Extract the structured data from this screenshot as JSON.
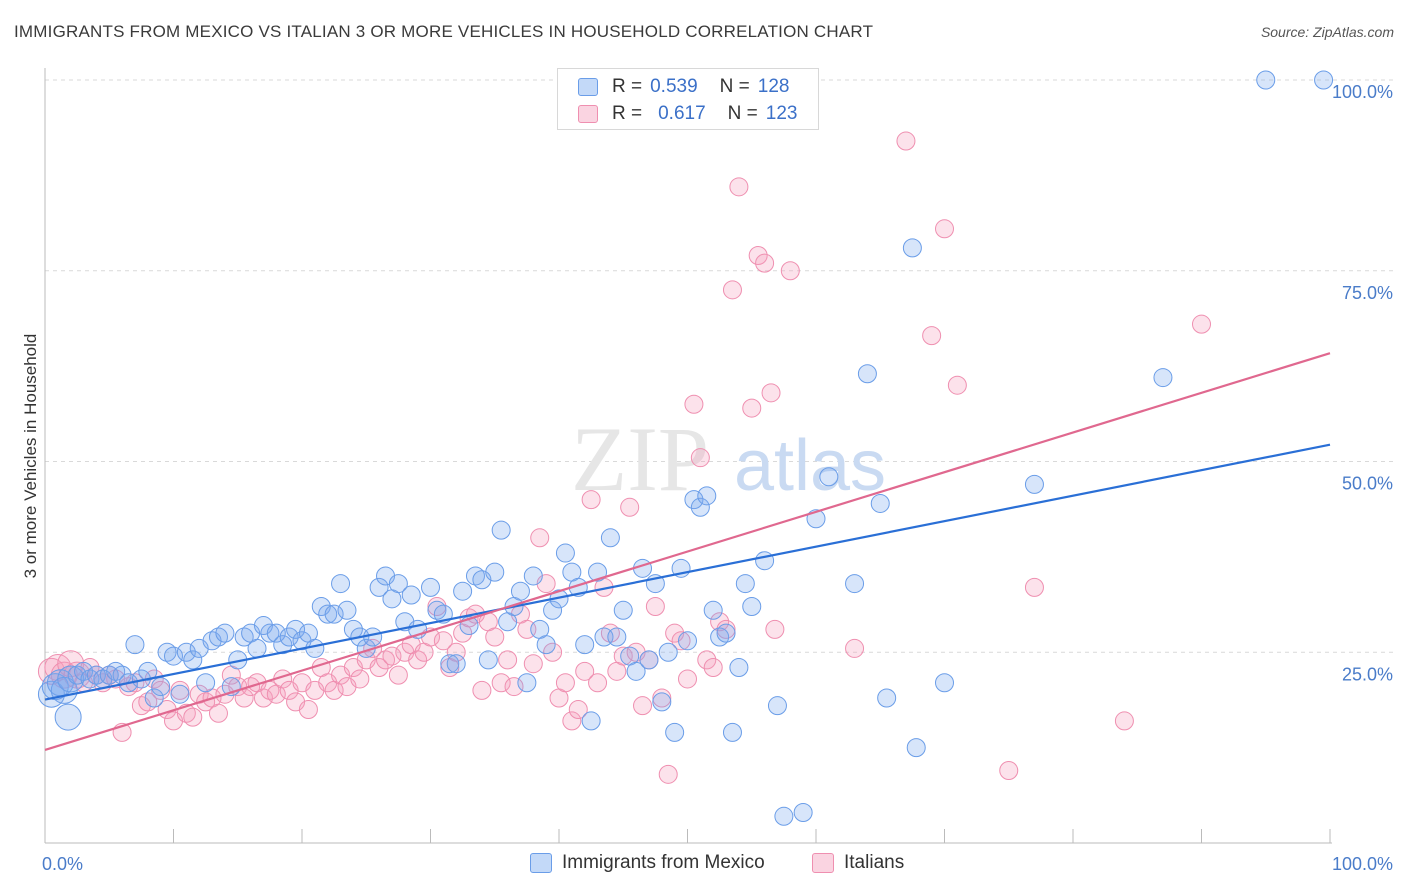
{
  "header": {
    "title": "IMMIGRANTS FROM MEXICO VS ITALIAN 3 OR MORE VEHICLES IN HOUSEHOLD CORRELATION CHART",
    "source": "Source: ZipAtlas.com"
  },
  "watermark": {
    "zip": "ZIP",
    "atlas": "atlas"
  },
  "legend": {
    "rows": [
      {
        "r_label": "R =",
        "r_value": "0.539",
        "n_label": "N =",
        "n_value": "128",
        "color": "#7aaaf0"
      },
      {
        "r_label": "R =",
        "r_value": "0.617",
        "n_label": "N =",
        "n_value": "123",
        "color": "#f4a0bc"
      }
    ]
  },
  "bottom_legend": {
    "mexico": "Immigrants from Mexico",
    "italians": "Italians"
  },
  "colors": {
    "mexico_fill": "rgba(122,170,240,0.30)",
    "mexico_stroke": "#6a9de8",
    "mexico_line": "#2a6fd6",
    "italians_fill": "rgba(244,160,188,0.30)",
    "italians_stroke": "#ef8fb0",
    "italians_line": "#e0688f",
    "tick_label": "#4a7cc9",
    "grid": "#d9d9d9"
  },
  "chart_data": {
    "type": "scatter",
    "title": "IMMIGRANTS FROM MEXICO VS ITALIAN 3 OR MORE VEHICLES IN HOUSEHOLD CORRELATION CHART",
    "xlabel": "",
    "ylabel": "3 or more Vehicles in Household",
    "xlim": [
      0,
      100
    ],
    "ylim": [
      0,
      100
    ],
    "x_tick_labels": [
      "0.0%",
      "100.0%"
    ],
    "y_tick_labels": [
      "25.0%",
      "50.0%",
      "75.0%",
      "100.0%"
    ],
    "y_ticks": [
      25,
      50,
      75,
      100
    ],
    "grid": true,
    "legend_position": "top-center",
    "series": [
      {
        "name": "Immigrants from Mexico",
        "r": 0.539,
        "n": 128,
        "trend": {
          "x": [
            0,
            100
          ],
          "y": [
            18.8,
            52.2
          ]
        },
        "points": [
          [
            0.5,
            19.5
          ],
          [
            0.8,
            20.5
          ],
          [
            1.2,
            21
          ],
          [
            1.5,
            20
          ],
          [
            1.8,
            16.5
          ],
          [
            2,
            21.5
          ],
          [
            2.5,
            22
          ],
          [
            3,
            22.5
          ],
          [
            3.5,
            21.5
          ],
          [
            4,
            22
          ],
          [
            4.5,
            21.5
          ],
          [
            5,
            22
          ],
          [
            5.5,
            22.5
          ],
          [
            6,
            22
          ],
          [
            6.5,
            21
          ],
          [
            7,
            26
          ],
          [
            7.5,
            21.5
          ],
          [
            8,
            22.5
          ],
          [
            8.5,
            19
          ],
          [
            9,
            20.5
          ],
          [
            9.5,
            25
          ],
          [
            10,
            24.5
          ],
          [
            10.5,
            19.5
          ],
          [
            11,
            25
          ],
          [
            11.5,
            24
          ],
          [
            12,
            25.5
          ],
          [
            12.5,
            21
          ],
          [
            13,
            26.5
          ],
          [
            13.5,
            27
          ],
          [
            14,
            27.5
          ],
          [
            14.5,
            20.5
          ],
          [
            15,
            24
          ],
          [
            15.5,
            27
          ],
          [
            16,
            27.5
          ],
          [
            16.5,
            25.5
          ],
          [
            17,
            28.5
          ],
          [
            17.5,
            27.5
          ],
          [
            18,
            27.5
          ],
          [
            18.5,
            26
          ],
          [
            19,
            27
          ],
          [
            19.5,
            28
          ],
          [
            20,
            26.5
          ],
          [
            20.5,
            27.5
          ],
          [
            21,
            25.5
          ],
          [
            21.5,
            31
          ],
          [
            22,
            30
          ],
          [
            22.5,
            30
          ],
          [
            23,
            34
          ],
          [
            23.5,
            30.5
          ],
          [
            24,
            28
          ],
          [
            24.5,
            27
          ],
          [
            25,
            25.5
          ],
          [
            25.5,
            27
          ],
          [
            26,
            33.5
          ],
          [
            26.5,
            35
          ],
          [
            27,
            32
          ],
          [
            27.5,
            34
          ],
          [
            28,
            29
          ],
          [
            28.5,
            32.5
          ],
          [
            29,
            28
          ],
          [
            30,
            33.5
          ],
          [
            30.5,
            30.5
          ],
          [
            31,
            30
          ],
          [
            31.5,
            23.5
          ],
          [
            32,
            23.5
          ],
          [
            32.5,
            33
          ],
          [
            33,
            28.5
          ],
          [
            33.5,
            35
          ],
          [
            34,
            34.5
          ],
          [
            34.5,
            24
          ],
          [
            35,
            35.5
          ],
          [
            35.5,
            41
          ],
          [
            36,
            29
          ],
          [
            36.5,
            31
          ],
          [
            37,
            33
          ],
          [
            37.5,
            21
          ],
          [
            38,
            35
          ],
          [
            38.5,
            28
          ],
          [
            39,
            26
          ],
          [
            39.5,
            30.5
          ],
          [
            40,
            32
          ],
          [
            40.5,
            38
          ],
          [
            41,
            35.5
          ],
          [
            41.5,
            33.5
          ],
          [
            42,
            26
          ],
          [
            42.5,
            16
          ],
          [
            43,
            35.5
          ],
          [
            43.5,
            27
          ],
          [
            44,
            40
          ],
          [
            44.5,
            27
          ],
          [
            45,
            30.5
          ],
          [
            45.5,
            24.5
          ],
          [
            46,
            22.5
          ],
          [
            46.5,
            36
          ],
          [
            47,
            24
          ],
          [
            47.5,
            34
          ],
          [
            48,
            18.5
          ],
          [
            48.5,
            25
          ],
          [
            49,
            14.5
          ],
          [
            49.5,
            36
          ],
          [
            50,
            26.5
          ],
          [
            50.5,
            45
          ],
          [
            51,
            44
          ],
          [
            51.5,
            45.5
          ],
          [
            52,
            30.5
          ],
          [
            52.5,
            27
          ],
          [
            53,
            27.5
          ],
          [
            53.5,
            14.5
          ],
          [
            54,
            23
          ],
          [
            54.5,
            34
          ],
          [
            55,
            31
          ],
          [
            56,
            37
          ],
          [
            57,
            18
          ],
          [
            57.5,
            3.5
          ],
          [
            59,
            4
          ],
          [
            60,
            42.5
          ],
          [
            61,
            48
          ],
          [
            63,
            34
          ],
          [
            64,
            61.5
          ],
          [
            65,
            44.5
          ],
          [
            65.5,
            19
          ],
          [
            67.5,
            78
          ],
          [
            67.8,
            12.5
          ],
          [
            70,
            21
          ],
          [
            77,
            47
          ],
          [
            87,
            61
          ],
          [
            95,
            100
          ],
          [
            99.5,
            100
          ]
        ]
      },
      {
        "name": "Italians",
        "r": 0.617,
        "n": 123,
        "trend": {
          "x": [
            0,
            100
          ],
          "y": [
            12.2,
            64.2
          ]
        },
        "points": [
          [
            0.5,
            22.5
          ],
          [
            1,
            23
          ],
          [
            1.5,
            22
          ],
          [
            2,
            23.5
          ],
          [
            2.5,
            22
          ],
          [
            3,
            21
          ],
          [
            3.5,
            23
          ],
          [
            4,
            22
          ],
          [
            4.5,
            21
          ],
          [
            5,
            22
          ],
          [
            5.5,
            21.5
          ],
          [
            6,
            14.5
          ],
          [
            6.5,
            20.5
          ],
          [
            7,
            21
          ],
          [
            7.5,
            18
          ],
          [
            8,
            18.5
          ],
          [
            8.5,
            21.5
          ],
          [
            9,
            20
          ],
          [
            9.5,
            17.5
          ],
          [
            10,
            16
          ],
          [
            10.5,
            20
          ],
          [
            11,
            17
          ],
          [
            11.5,
            16.5
          ],
          [
            12,
            19.5
          ],
          [
            12.5,
            18.5
          ],
          [
            13,
            19
          ],
          [
            13.5,
            17
          ],
          [
            14,
            19.5
          ],
          [
            14.5,
            22
          ],
          [
            15,
            20.5
          ],
          [
            15.5,
            19
          ],
          [
            16,
            20.5
          ],
          [
            16.5,
            21
          ],
          [
            17,
            19
          ],
          [
            17.5,
            20
          ],
          [
            18,
            19.5
          ],
          [
            18.5,
            21.5
          ],
          [
            19,
            20
          ],
          [
            19.5,
            18.5
          ],
          [
            20,
            21
          ],
          [
            20.5,
            17.5
          ],
          [
            21,
            20
          ],
          [
            21.5,
            23
          ],
          [
            22,
            21
          ],
          [
            22.5,
            20
          ],
          [
            23,
            22
          ],
          [
            23.5,
            20.5
          ],
          [
            24,
            23
          ],
          [
            24.5,
            21.5
          ],
          [
            25,
            24
          ],
          [
            25.5,
            25.5
          ],
          [
            26,
            23
          ],
          [
            26.5,
            24
          ],
          [
            27,
            24.5
          ],
          [
            27.5,
            22
          ],
          [
            28,
            25
          ],
          [
            28.5,
            26
          ],
          [
            29,
            24
          ],
          [
            29.5,
            25
          ],
          [
            30,
            27
          ],
          [
            30.5,
            31
          ],
          [
            31,
            26.5
          ],
          [
            31.5,
            23
          ],
          [
            32,
            25
          ],
          [
            32.5,
            27.5
          ],
          [
            33,
            29.5
          ],
          [
            33.5,
            30
          ],
          [
            34,
            20
          ],
          [
            34.5,
            29
          ],
          [
            35,
            27
          ],
          [
            35.5,
            21
          ],
          [
            36,
            24
          ],
          [
            36.5,
            20.5
          ],
          [
            37,
            30
          ],
          [
            37.5,
            28
          ],
          [
            38,
            23.5
          ],
          [
            38.5,
            40
          ],
          [
            39,
            34
          ],
          [
            39.5,
            25
          ],
          [
            40,
            19
          ],
          [
            40.5,
            21
          ],
          [
            41,
            16
          ],
          [
            41.5,
            17.5
          ],
          [
            42,
            22.5
          ],
          [
            42.5,
            45
          ],
          [
            43,
            21
          ],
          [
            43.5,
            33.5
          ],
          [
            44,
            27.5
          ],
          [
            44.5,
            22.5
          ],
          [
            45,
            24.5
          ],
          [
            45.5,
            44
          ],
          [
            46,
            25
          ],
          [
            46.5,
            18
          ],
          [
            47,
            24
          ],
          [
            47.5,
            31
          ],
          [
            48,
            19
          ],
          [
            48.5,
            9
          ],
          [
            49,
            27.5
          ],
          [
            49.5,
            26.5
          ],
          [
            50,
            21.5
          ],
          [
            50.5,
            57.5
          ],
          [
            51,
            50.5
          ],
          [
            51.5,
            24
          ],
          [
            52,
            23
          ],
          [
            52.5,
            29
          ],
          [
            53,
            28
          ],
          [
            53.5,
            72.5
          ],
          [
            54,
            86
          ],
          [
            55,
            57
          ],
          [
            55.5,
            77
          ],
          [
            56,
            76
          ],
          [
            56.5,
            59
          ],
          [
            56.8,
            28
          ],
          [
            58,
            75
          ],
          [
            63,
            25.5
          ],
          [
            67,
            92
          ],
          [
            69,
            66.5
          ],
          [
            70,
            80.5
          ],
          [
            71,
            60
          ],
          [
            75,
            9.5
          ],
          [
            77,
            33.5
          ],
          [
            84,
            16
          ],
          [
            90,
            68
          ]
        ]
      }
    ]
  }
}
